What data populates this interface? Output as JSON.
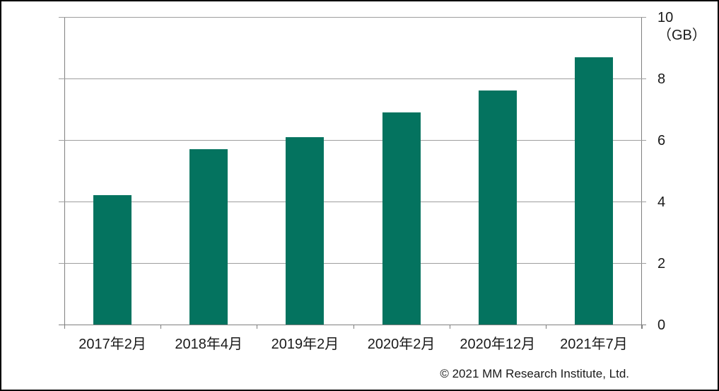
{
  "chart_data": {
    "type": "bar",
    "title": "",
    "xlabel": "",
    "ylabel": "（GB）",
    "categories": [
      "2017年2月",
      "2018年4月",
      "2019年2月",
      "2020年2月",
      "2020年12月",
      "2021年7月"
    ],
    "values": [
      4.2,
      5.7,
      6.1,
      6.9,
      7.6,
      8.7
    ],
    "ylim": [
      0,
      10
    ],
    "yticks": [
      0,
      2,
      4,
      6,
      8,
      10
    ],
    "ytick_labels": [
      "0",
      "2",
      "4",
      "6",
      "8",
      "10"
    ],
    "grid": true,
    "legend_position": "none",
    "y_axis_side": "right",
    "bar_color": "#04735F",
    "gridline_color": "#9e9e9e",
    "axis_color": "#7f7f7f",
    "text_color": "#1a1a1a"
  },
  "footer": {
    "copyright": "© 2021 MM Research Institute, Ltd."
  }
}
